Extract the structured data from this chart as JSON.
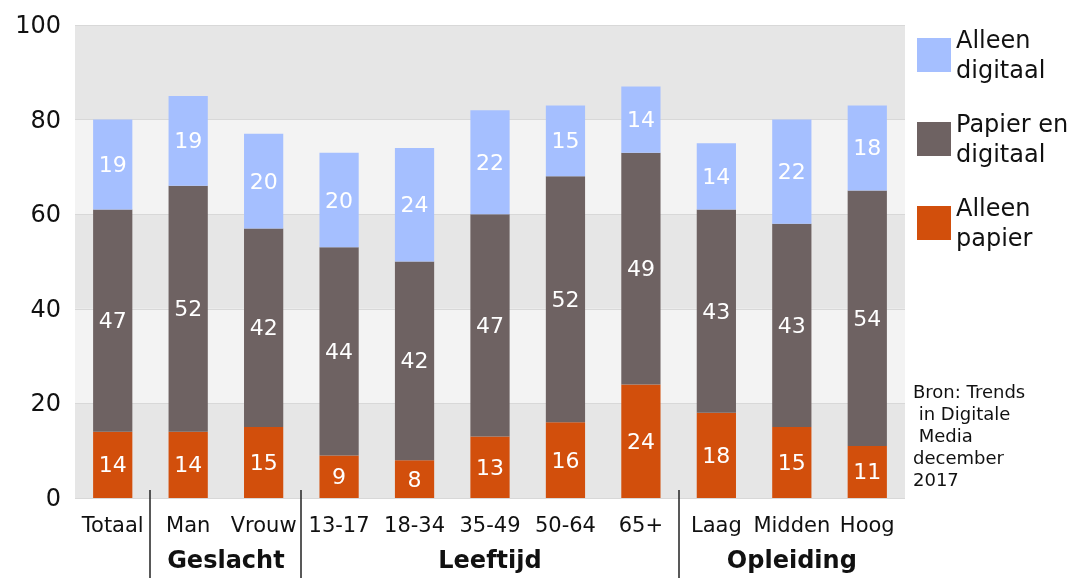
{
  "chart_data": {
    "type": "bar",
    "stacked": true,
    "categories": [
      "Totaal",
      "Man",
      "Vrouw",
      "13-17",
      "18-34",
      "35-49",
      "50-64",
      "65+",
      "Laag",
      "Midden",
      "Hoog"
    ],
    "series": [
      {
        "name": "Alleen papier",
        "color": "#d24f0c",
        "values": [
          14,
          14,
          15,
          9,
          8,
          13,
          16,
          24,
          18,
          15,
          11
        ]
      },
      {
        "name": "Papier en digitaal",
        "color": "#6e6262",
        "values": [
          47,
          52,
          42,
          44,
          42,
          47,
          52,
          49,
          43,
          43,
          54
        ]
      },
      {
        "name": "Alleen digitaal",
        "color": "#a5bfff",
        "values": [
          19,
          19,
          20,
          20,
          24,
          22,
          15,
          14,
          14,
          22,
          18
        ]
      }
    ],
    "ylim": [
      0,
      100
    ],
    "yticks": [
      0,
      20,
      40,
      60,
      80,
      100
    ],
    "grid": true,
    "legend": "right",
    "data_labels": true,
    "annotations": [
      "Geslacht",
      "Leeftijd",
      "Opleiding",
      "Bron: Trends in Digitale Media december 2017"
    ]
  }
}
